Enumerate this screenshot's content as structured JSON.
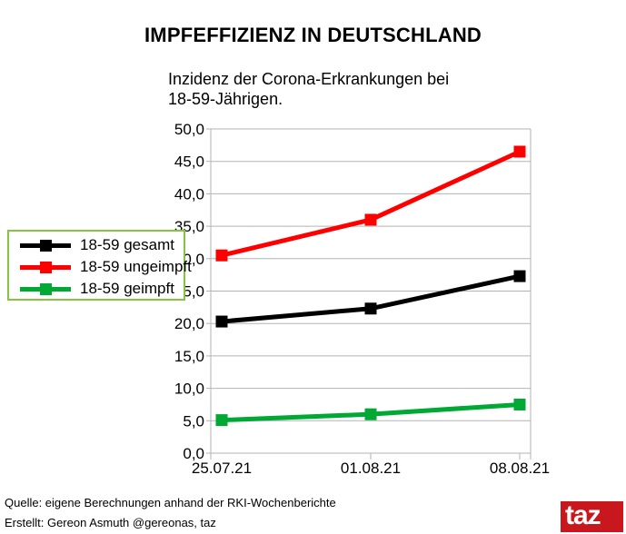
{
  "chart_data": {
    "type": "line",
    "title": "IMPFEFFIZIENZ IN DEUTSCHLAND",
    "subtitle": "Inzidenz der Corona-Erkrankungen bei 18-59-Jährigen.",
    "categories": [
      "25.07.21",
      "01.08.21",
      "08.08.21"
    ],
    "series": [
      {
        "name": "18-59 gesamt",
        "color": "#000000",
        "values": [
          20.3,
          22.3,
          27.3
        ]
      },
      {
        "name": "18-59 ungeimpft",
        "color": "#ff0000",
        "values": [
          30.5,
          36.0,
          46.5
        ]
      },
      {
        "name": "18-59 geimpft",
        "color": "#00a933",
        "values": [
          5.1,
          6.0,
          7.5
        ]
      }
    ],
    "xlabel": "",
    "ylabel": "",
    "ylim": [
      0,
      50
    ],
    "y_tick_step": 5,
    "y_tick_labels": [
      "50,0",
      "45,0",
      "40,0",
      "35,0",
      "30,0",
      "25,0",
      "20,0",
      "15,0",
      "10,0",
      "5,0",
      "0,0"
    ],
    "grid": "horizontal",
    "legend_position": "left, green-bordered box overlapping y-axis labels"
  },
  "legend": {
    "items": [
      "18-59 gesamt",
      "18-59 ungeimpft",
      "18-59 geimpft"
    ],
    "border_color": "#84c441"
  },
  "footer": {
    "source_line": "Quelle: eigene Berechnungen anhand der RKI-Wochenberichte",
    "credit_line": "Erstellt: Gereon Asmuth @gereonas, taz",
    "logo_text": "taz",
    "logo_color": "#c9181d"
  },
  "style_colors": {
    "grid": "#b3b3b3",
    "axis": "#b3b3b3",
    "background": "#ffffff",
    "text": "#000000"
  }
}
